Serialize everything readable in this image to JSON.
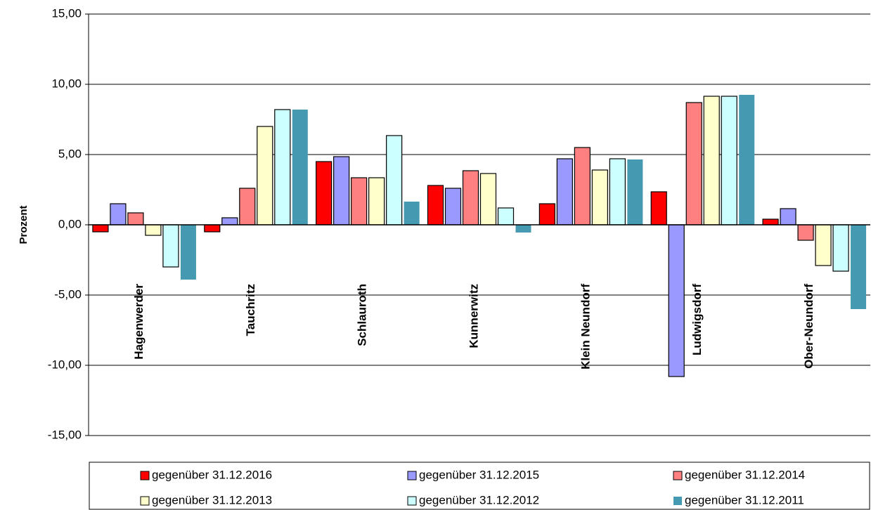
{
  "chart_data": {
    "type": "bar",
    "ylabel": "Prozent",
    "ylim": [
      -15,
      15
    ],
    "y_ticks": [
      "15,00",
      "10,00",
      "5,00",
      "0,00",
      "-5,00",
      "-10,00",
      "-15,00"
    ],
    "grid": true,
    "legend_position": "bottom",
    "categories": [
      "Hagenwerder",
      "Tauchritz",
      "Schlauroth",
      "Kunnerwitz",
      "Klein Neundorf",
      "Ludwigsdorf",
      "Ober-Neundorf"
    ],
    "series": [
      {
        "name": "gegenüber 31.12.2016",
        "color": "#ff0000",
        "values": [
          -0.5,
          -0.5,
          4.5,
          2.8,
          1.5,
          2.35,
          0.4
        ]
      },
      {
        "name": "gegenüber 31.12.2015",
        "color": "#9999ff",
        "values": [
          1.5,
          0.5,
          4.85,
          2.6,
          4.7,
          -10.8,
          1.15
        ]
      },
      {
        "name": "gegenüber 31.12.2014",
        "color": "#ff8080",
        "values": [
          0.85,
          2.6,
          3.35,
          3.85,
          5.5,
          8.7,
          -1.1
        ]
      },
      {
        "name": "gegenüber 31.12.2013",
        "color": "#ffffcc",
        "values": [
          -0.75,
          7.0,
          3.35,
          3.65,
          3.9,
          9.15,
          -2.9
        ]
      },
      {
        "name": "gegenüber 31.12.2012",
        "color": "#ccffff",
        "values": [
          -3.0,
          8.2,
          6.35,
          1.2,
          4.7,
          9.15,
          -3.3
        ]
      },
      {
        "name": "gegenüber 31.12.2011",
        "color": "#4599b0",
        "values": [
          -3.9,
          8.2,
          1.65,
          -0.55,
          4.65,
          9.25,
          -6.0
        ]
      }
    ]
  }
}
